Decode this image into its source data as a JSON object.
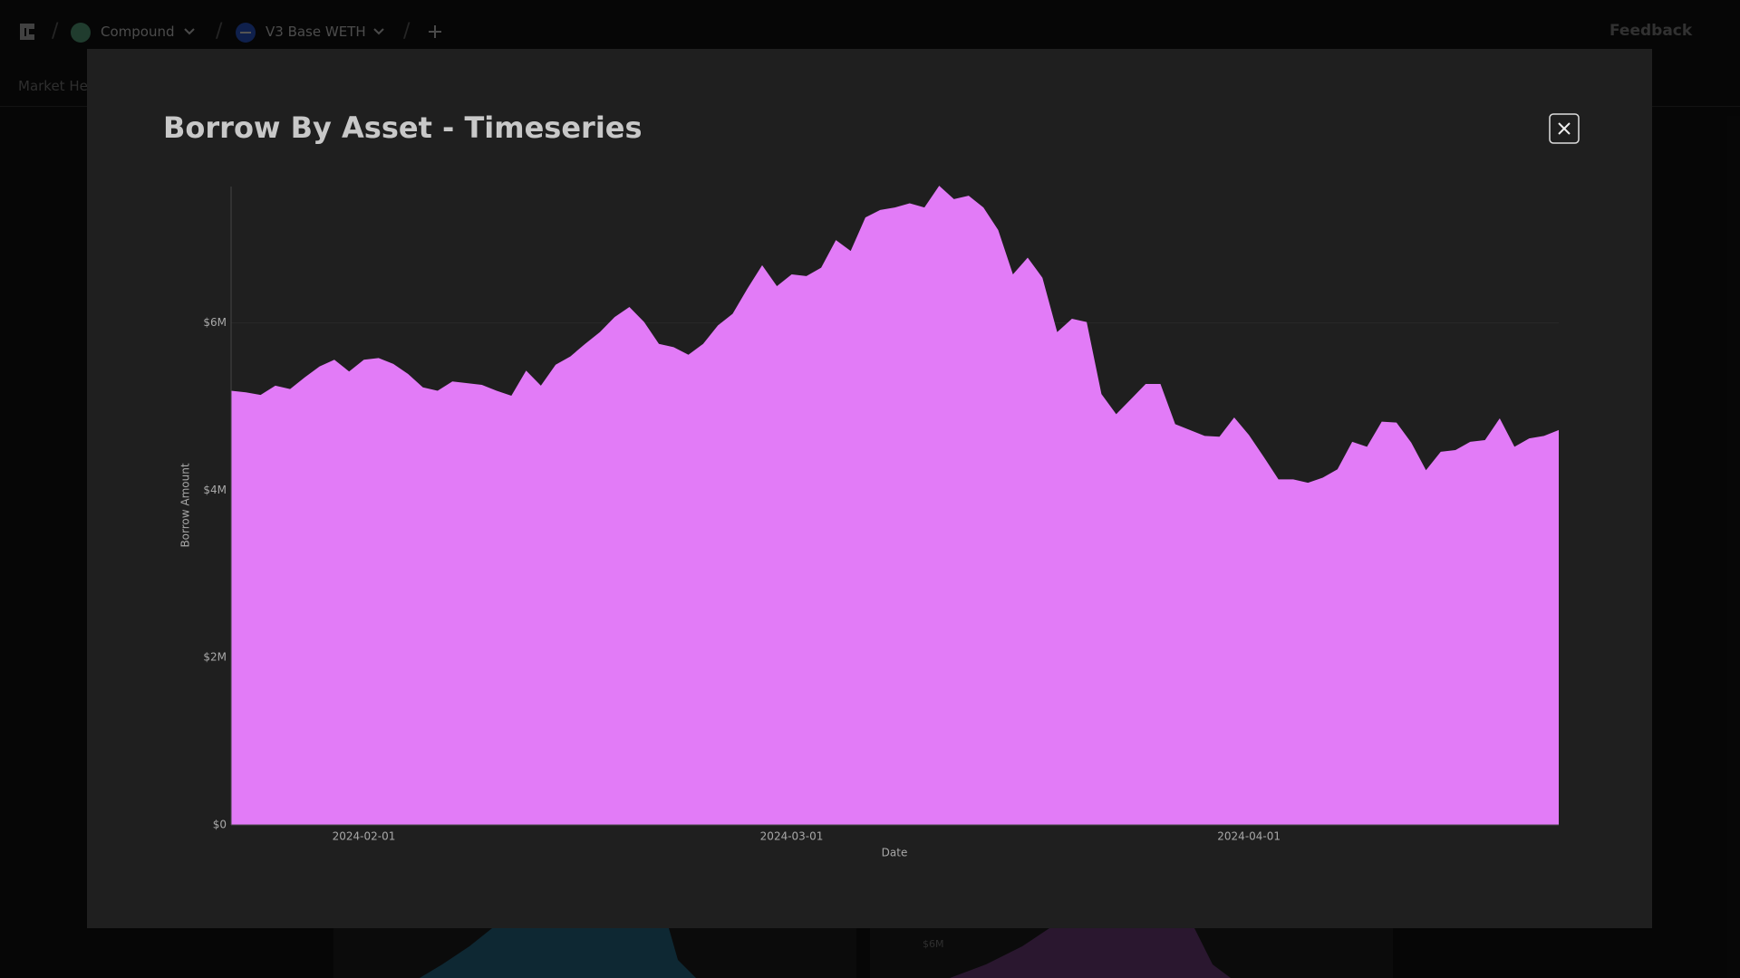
{
  "nav": {
    "project": "Compound",
    "market": "V3 Base WETH",
    "feedback": "Feedback",
    "tab": "Market Health"
  },
  "background": {
    "mini_chart_label": "$6M"
  },
  "chart_data": {
    "type": "area",
    "title": "Borrow By Asset - Timeseries",
    "x_label": "Date",
    "y_label": "Borrow Amount",
    "color": "#e27bf7",
    "grid": true,
    "x": [
      "2024-01-23",
      "2024-01-24",
      "2024-01-25",
      "2024-01-26",
      "2024-01-27",
      "2024-01-28",
      "2024-01-29",
      "2024-01-30",
      "2024-01-31",
      "2024-02-01",
      "2024-02-02",
      "2024-02-03",
      "2024-02-04",
      "2024-02-05",
      "2024-02-06",
      "2024-02-07",
      "2024-02-08",
      "2024-02-09",
      "2024-02-10",
      "2024-02-11",
      "2024-02-12",
      "2024-02-13",
      "2024-02-14",
      "2024-02-15",
      "2024-02-16",
      "2024-02-17",
      "2024-02-18",
      "2024-02-19",
      "2024-02-20",
      "2024-02-21",
      "2024-02-22",
      "2024-02-23",
      "2024-02-24",
      "2024-02-25",
      "2024-02-26",
      "2024-02-27",
      "2024-02-28",
      "2024-02-29",
      "2024-03-01",
      "2024-03-02",
      "2024-03-03",
      "2024-03-04",
      "2024-03-05",
      "2024-03-06",
      "2024-03-07",
      "2024-03-08",
      "2024-03-09",
      "2024-03-10",
      "2024-03-11",
      "2024-03-12",
      "2024-03-13",
      "2024-03-14",
      "2024-03-15",
      "2024-03-16",
      "2024-03-17",
      "2024-03-18",
      "2024-03-19",
      "2024-03-20",
      "2024-03-21",
      "2024-03-22",
      "2024-03-23",
      "2024-03-24",
      "2024-03-25",
      "2024-03-26",
      "2024-03-27",
      "2024-03-28",
      "2024-03-29",
      "2024-03-30",
      "2024-03-31",
      "2024-04-01",
      "2024-04-02",
      "2024-04-03",
      "2024-04-04",
      "2024-04-05",
      "2024-04-06",
      "2024-04-07",
      "2024-04-08",
      "2024-04-09",
      "2024-04-10",
      "2024-04-11",
      "2024-04-12",
      "2024-04-13",
      "2024-04-14",
      "2024-04-15",
      "2024-04-16",
      "2024-04-17",
      "2024-04-18",
      "2024-04-19",
      "2024-04-20",
      "2024-04-21",
      "2024-04-22"
    ],
    "values": [
      5190000,
      5170000,
      5140000,
      5250000,
      5210000,
      5350000,
      5480000,
      5560000,
      5420000,
      5560000,
      5580000,
      5510000,
      5390000,
      5230000,
      5190000,
      5300000,
      5280000,
      5260000,
      5190000,
      5130000,
      5430000,
      5250000,
      5500000,
      5600000,
      5750000,
      5890000,
      6070000,
      6190000,
      6010000,
      5750000,
      5710000,
      5620000,
      5750000,
      5970000,
      6110000,
      6410000,
      6690000,
      6440000,
      6580000,
      6560000,
      6660000,
      6990000,
      6860000,
      7260000,
      7350000,
      7380000,
      7430000,
      7380000,
      7640000,
      7480000,
      7520000,
      7380000,
      7110000,
      6580000,
      6780000,
      6540000,
      5890000,
      6050000,
      6010000,
      5150000,
      4910000,
      5090000,
      5270000,
      5270000,
      4790000,
      4720000,
      4650000,
      4640000,
      4870000,
      4660000,
      4400000,
      4130000,
      4130000,
      4090000,
      4150000,
      4250000,
      4580000,
      4520000,
      4820000,
      4810000,
      4570000,
      4240000,
      4460000,
      4480000,
      4580000,
      4600000,
      4860000,
      4520000,
      4620000,
      4650000,
      4720000
    ],
    "xlim": [
      "2024-01-23",
      "2024-04-22"
    ],
    "xticks": [
      "2024-02-01",
      "2024-03-01",
      "2024-04-01"
    ],
    "ylim": [
      0,
      7630000
    ],
    "yticks": [
      {
        "value": 0,
        "label": "$0"
      },
      {
        "value": 2000000,
        "label": "$2M"
      },
      {
        "value": 4000000,
        "label": "$4M"
      },
      {
        "value": 6000000,
        "label": "$6M"
      }
    ]
  }
}
